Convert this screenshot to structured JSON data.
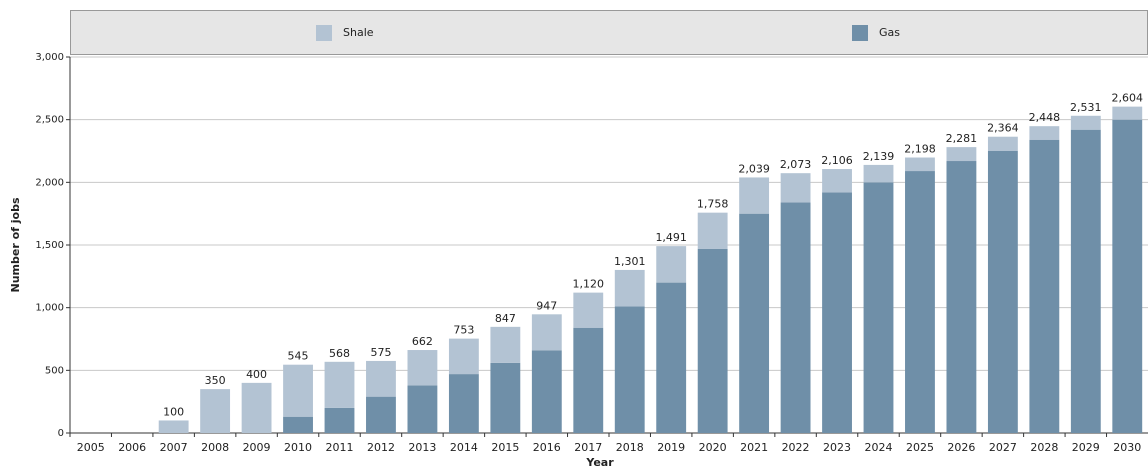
{
  "chart_data": {
    "type": "stacked_bar",
    "x_label": "Year",
    "y_label": "Number of jobs",
    "categories": [
      "2005",
      "2006",
      "2007",
      "2008",
      "2009",
      "2010",
      "2011",
      "2012",
      "2013",
      "2014",
      "2015",
      "2016",
      "2017",
      "2018",
      "2019",
      "2020",
      "2021",
      "2022",
      "2023",
      "2024",
      "2025",
      "2026",
      "2027",
      "2028",
      "2029",
      "2030"
    ],
    "series": [
      {
        "name": "Shale",
        "color": "#b3c3d3",
        "values": [
          0,
          0,
          100,
          350,
          400,
          415,
          368,
          285,
          282,
          283,
          287,
          287,
          280,
          291,
          291,
          288,
          289,
          233,
          186,
          139,
          108,
          111,
          114,
          108,
          111,
          104
        ]
      },
      {
        "name": "Gas",
        "color": "#6f8fa8",
        "values": [
          0,
          0,
          0,
          0,
          0,
          130,
          200,
          290,
          380,
          470,
          560,
          660,
          840,
          1010,
          1200,
          1470,
          1750,
          1840,
          1920,
          2000,
          2090,
          2170,
          2250,
          2340,
          2420,
          2500
        ]
      }
    ],
    "total_labels": [
      null,
      null,
      "100",
      "350",
      "400",
      "545",
      "568",
      "575",
      "662",
      "753",
      "847",
      "947",
      "1,120",
      "1,301",
      "1,491",
      "1,758",
      "2,039",
      "2,073",
      "2,106",
      "2,139",
      "2,198",
      "2,281",
      "2,364",
      "2,448",
      "2,531",
      "2,604"
    ],
    "ylim": [
      0,
      3000
    ],
    "yticks": [
      0,
      500,
      {
        "value": 1000,
        "label": "1,000"
      },
      {
        "value": 1500,
        "label": "1,500"
      },
      {
        "value": 2000,
        "label": "2,000"
      },
      {
        "value": 2500,
        "label": "2,500"
      },
      {
        "value": 3000,
        "label": "3,000"
      }
    ],
    "grid": true,
    "legend": "top"
  }
}
